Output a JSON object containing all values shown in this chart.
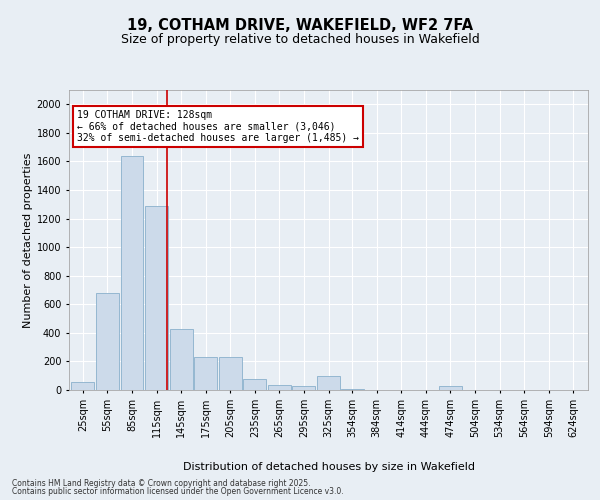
{
  "title": "19, COTHAM DRIVE, WAKEFIELD, WF2 7FA",
  "subtitle": "Size of property relative to detached houses in Wakefield",
  "xlabel": "Distribution of detached houses by size in Wakefield",
  "ylabel": "Number of detached properties",
  "footer_line1": "Contains HM Land Registry data © Crown copyright and database right 2025.",
  "footer_line2": "Contains public sector information licensed under the Open Government Licence v3.0.",
  "annotation_title": "19 COTHAM DRIVE: 128sqm",
  "annotation_line1": "← 66% of detached houses are smaller (3,046)",
  "annotation_line2": "32% of semi-detached houses are larger (1,485) →",
  "property_size": 128,
  "categories": [
    "25sqm",
    "55sqm",
    "85sqm",
    "115sqm",
    "145sqm",
    "175sqm",
    "205sqm",
    "235sqm",
    "265sqm",
    "295sqm",
    "325sqm",
    "354sqm",
    "384sqm",
    "414sqm",
    "444sqm",
    "474sqm",
    "504sqm",
    "534sqm",
    "564sqm",
    "594sqm",
    "624sqm"
  ],
  "bin_centers": [
    25,
    55,
    85,
    115,
    145,
    175,
    205,
    235,
    265,
    295,
    325,
    354,
    384,
    414,
    444,
    474,
    504,
    534,
    564,
    594,
    624
  ],
  "bin_width": 28,
  "values": [
    55,
    680,
    1640,
    1290,
    430,
    230,
    230,
    80,
    35,
    25,
    100,
    10,
    0,
    0,
    0,
    25,
    0,
    0,
    0,
    0,
    0
  ],
  "bar_color": "#ccdaea",
  "bar_edge_color": "#8ab0cc",
  "red_line_x": 128,
  "ylim": [
    0,
    2100
  ],
  "yticks": [
    0,
    200,
    400,
    600,
    800,
    1000,
    1200,
    1400,
    1600,
    1800,
    2000
  ],
  "background_color": "#e8eef4",
  "plot_bg_color": "#e8eef4",
  "grid_color": "#ffffff",
  "annotation_box_color": "#ffffff",
  "annotation_border_color": "#cc0000",
  "title_fontsize": 10.5,
  "subtitle_fontsize": 9,
  "axis_label_fontsize": 8,
  "tick_fontsize": 7,
  "annotation_fontsize": 7,
  "footer_fontsize": 5.5
}
